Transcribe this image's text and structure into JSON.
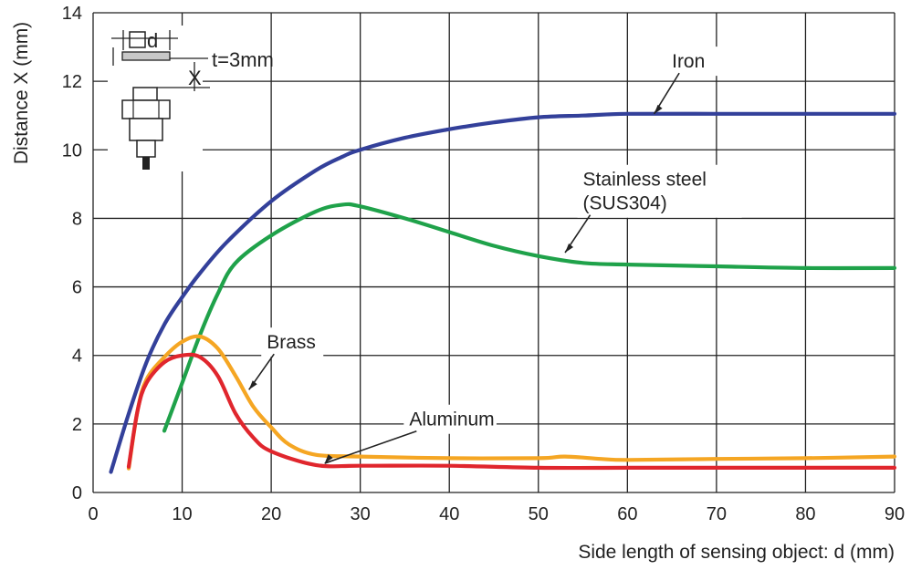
{
  "chart_data": {
    "type": "line",
    "title": "",
    "xlabel": "Side length of sensing object: d (mm)",
    "ylabel": "Distance X (mm)",
    "xlim": [
      0,
      90
    ],
    "ylim": [
      0,
      14
    ],
    "xticks": [
      0,
      10,
      20,
      30,
      40,
      50,
      60,
      70,
      80,
      90
    ],
    "yticks": [
      0,
      2,
      4,
      6,
      8,
      10,
      12,
      14
    ],
    "grid": true,
    "legend": "none",
    "series": [
      {
        "name": "Iron",
        "color": "#33409a",
        "points": [
          [
            2,
            0.6
          ],
          [
            4,
            2.3
          ],
          [
            6,
            3.8
          ],
          [
            8,
            4.9
          ],
          [
            10,
            5.7
          ],
          [
            12,
            6.4
          ],
          [
            15,
            7.3
          ],
          [
            20,
            8.5
          ],
          [
            25,
            9.4
          ],
          [
            28,
            9.8
          ],
          [
            30,
            10.0
          ],
          [
            35,
            10.35
          ],
          [
            40,
            10.6
          ],
          [
            45,
            10.8
          ],
          [
            50,
            10.95
          ],
          [
            55,
            11.0
          ],
          [
            60,
            11.05
          ],
          [
            70,
            11.05
          ],
          [
            80,
            11.05
          ],
          [
            90,
            11.05
          ]
        ],
        "label": {
          "text": "Iron",
          "x": 65,
          "y": 12.4,
          "anchor": [
            63,
            11.05
          ]
        }
      },
      {
        "name": "Stainless steel (SUS304)",
        "color": "#1fa24a",
        "points": [
          [
            8,
            1.8
          ],
          [
            10,
            3.2
          ],
          [
            12,
            4.6
          ],
          [
            14,
            5.8
          ],
          [
            16,
            6.7
          ],
          [
            20,
            7.5
          ],
          [
            25,
            8.2
          ],
          [
            28,
            8.4
          ],
          [
            30,
            8.35
          ],
          [
            35,
            8.0
          ],
          [
            40,
            7.6
          ],
          [
            45,
            7.2
          ],
          [
            50,
            6.9
          ],
          [
            55,
            6.7
          ],
          [
            60,
            6.65
          ],
          [
            70,
            6.6
          ],
          [
            80,
            6.55
          ],
          [
            90,
            6.55
          ]
        ],
        "label": {
          "lines": [
            "Stainless steel",
            "(SUS304)"
          ],
          "x": 55,
          "y": 8.95,
          "anchor": [
            53,
            7.0
          ]
        }
      },
      {
        "name": "Brass",
        "color": "#f5a623",
        "points": [
          [
            4,
            0.7
          ],
          [
            5,
            2.4
          ],
          [
            6,
            3.3
          ],
          [
            8,
            3.95
          ],
          [
            10,
            4.4
          ],
          [
            12,
            4.55
          ],
          [
            14,
            4.2
          ],
          [
            16,
            3.4
          ],
          [
            18,
            2.5
          ],
          [
            20,
            1.9
          ],
          [
            22,
            1.4
          ],
          [
            25,
            1.1
          ],
          [
            30,
            1.05
          ],
          [
            40,
            1.0
          ],
          [
            50,
            1.0
          ],
          [
            53,
            1.05
          ],
          [
            57,
            0.98
          ],
          [
            60,
            0.95
          ],
          [
            70,
            0.98
          ],
          [
            80,
            1.0
          ],
          [
            90,
            1.05
          ]
        ],
        "label": {
          "text": "Brass",
          "x": 19.5,
          "y": 4.2,
          "anchor": [
            17.5,
            3.0
          ]
        }
      },
      {
        "name": "Aluminum",
        "color": "#e0262d",
        "points": [
          [
            4,
            0.75
          ],
          [
            5,
            2.4
          ],
          [
            6,
            3.2
          ],
          [
            8,
            3.8
          ],
          [
            10,
            4.0
          ],
          [
            12,
            3.95
          ],
          [
            14,
            3.4
          ],
          [
            16,
            2.3
          ],
          [
            18,
            1.6
          ],
          [
            20,
            1.2
          ],
          [
            25,
            0.8
          ],
          [
            30,
            0.78
          ],
          [
            40,
            0.78
          ],
          [
            50,
            0.72
          ],
          [
            60,
            0.72
          ],
          [
            70,
            0.72
          ],
          [
            80,
            0.72
          ],
          [
            90,
            0.72
          ]
        ],
        "label": {
          "text": "Aluminum",
          "x": 35.5,
          "y": 1.95,
          "anchor": [
            26,
            0.85
          ]
        }
      }
    ],
    "inset": {
      "square_label": "d",
      "thickness_label": "t=3mm",
      "distance_label": "X"
    }
  }
}
